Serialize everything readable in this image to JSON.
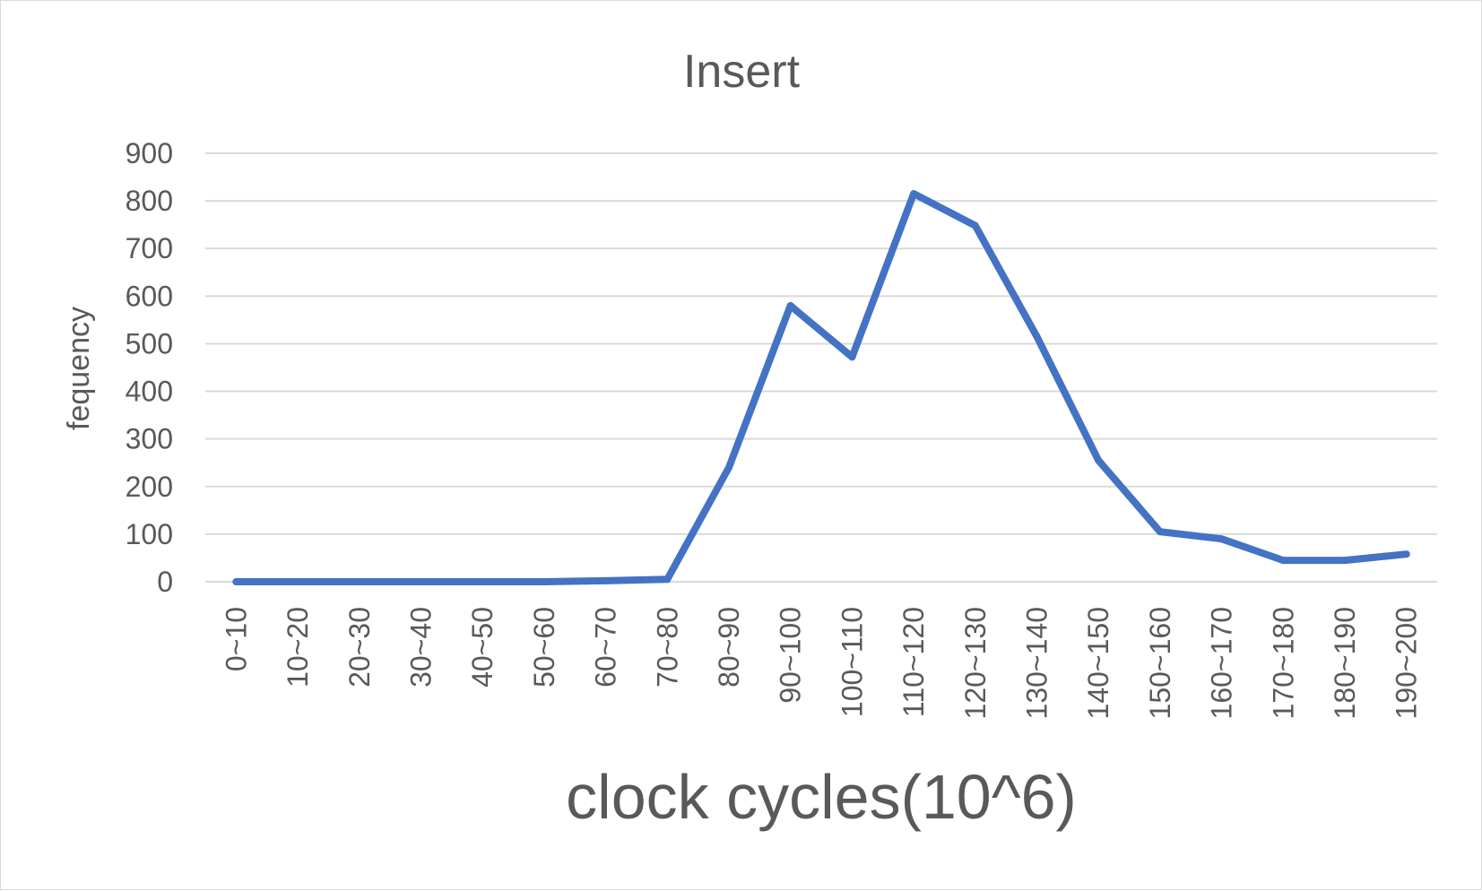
{
  "chart_data": {
    "type": "line",
    "title": "Insert",
    "xlabel": "clock cycles(10^6)",
    "ylabel": "fequency",
    "categories": [
      "0~10",
      "10~20",
      "20~30",
      "30~40",
      "40~50",
      "50~60",
      "60~70",
      "70~80",
      "80~90",
      "90~100",
      "100~110",
      "110~120",
      "120~130",
      "130~140",
      "140~150",
      "150~160",
      "160~170",
      "170~180",
      "180~190",
      "190~200"
    ],
    "series": [
      {
        "values": [
          0,
          0,
          0,
          0,
          0,
          0,
          2,
          5,
          240,
          580,
          472,
          815,
          748,
          515,
          255,
          105,
          90,
          45,
          45,
          58
        ]
      }
    ],
    "ylim": [
      0,
      900
    ],
    "yticks": [
      0,
      100,
      200,
      300,
      400,
      500,
      600,
      700,
      800,
      900
    ],
    "grid": true,
    "legend": "none",
    "line_color": "#4472c4"
  }
}
